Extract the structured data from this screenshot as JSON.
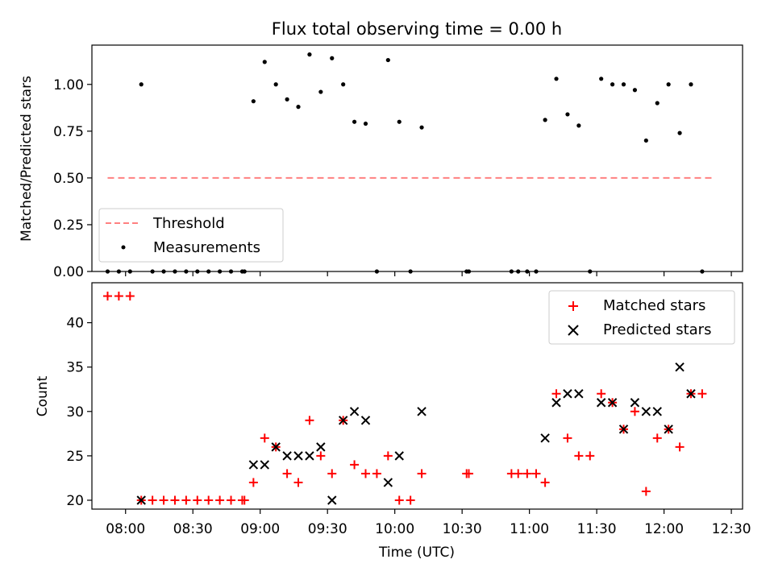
{
  "chart_data": [
    {
      "type": "scatter",
      "title": "Flux total observing time = 0.00 h",
      "xlabel": "",
      "ylabel": "Matched/Predicted stars",
      "x_unit": "UTC time (HH:MM)",
      "xlim": [
        "07:45",
        "12:35"
      ],
      "ylim": [
        0,
        1.21
      ],
      "yticks": [
        0.0,
        0.25,
        0.5,
        0.75,
        1.0
      ],
      "ytick_labels": [
        "0.00",
        "0.25",
        "0.50",
        "0.75",
        "1.00"
      ],
      "grid": false,
      "legend": "lower-left",
      "series": [
        {
          "name": "Threshold",
          "kind": "dashed-line",
          "color": "#ff8080",
          "points": [
            [
              "07:52",
              0.5
            ],
            [
              "12:22",
              0.5
            ]
          ]
        },
        {
          "name": "Measurements",
          "kind": "dots",
          "color": "#000000",
          "points": [
            [
              "07:52",
              0.0
            ],
            [
              "07:57",
              0.0
            ],
            [
              "08:02",
              0.0
            ],
            [
              "08:07",
              1.0
            ],
            [
              "08:12",
              0.0
            ],
            [
              "08:17",
              0.0
            ],
            [
              "08:22",
              0.0
            ],
            [
              "08:27",
              0.0
            ],
            [
              "08:32",
              0.0
            ],
            [
              "08:37",
              0.0
            ],
            [
              "08:42",
              0.0
            ],
            [
              "08:47",
              0.0
            ],
            [
              "08:52",
              0.0
            ],
            [
              "08:53",
              0.0
            ],
            [
              "08:57",
              0.91
            ],
            [
              "09:02",
              1.12
            ],
            [
              "09:07",
              1.0
            ],
            [
              "09:12",
              0.92
            ],
            [
              "09:17",
              0.88
            ],
            [
              "09:22",
              1.16
            ],
            [
              "09:27",
              0.96
            ],
            [
              "09:32",
              1.14
            ],
            [
              "09:37",
              1.0
            ],
            [
              "09:42",
              0.8
            ],
            [
              "09:47",
              0.79
            ],
            [
              "09:52",
              0.0
            ],
            [
              "09:57",
              1.13
            ],
            [
              "10:02",
              0.8
            ],
            [
              "10:07",
              0.0
            ],
            [
              "10:12",
              0.77
            ],
            [
              "10:32",
              0.0
            ],
            [
              "10:33",
              0.0
            ],
            [
              "10:52",
              0.0
            ],
            [
              "10:55",
              0.0
            ],
            [
              "10:59",
              0.0
            ],
            [
              "11:03",
              0.0
            ],
            [
              "11:07",
              0.81
            ],
            [
              "11:12",
              1.03
            ],
            [
              "11:17",
              0.84
            ],
            [
              "11:22",
              0.78
            ],
            [
              "11:27",
              0.0
            ],
            [
              "11:32",
              1.03
            ],
            [
              "11:37",
              1.0
            ],
            [
              "11:42",
              1.0
            ],
            [
              "11:47",
              0.97
            ],
            [
              "11:52",
              0.7
            ],
            [
              "11:57",
              0.9
            ],
            [
              "12:02",
              1.0
            ],
            [
              "12:07",
              0.74
            ],
            [
              "12:12",
              1.0
            ],
            [
              "12:17",
              0.0
            ]
          ]
        }
      ]
    },
    {
      "type": "scatter",
      "title": "",
      "xlabel": "Time (UTC)",
      "ylabel": "Count",
      "x_unit": "UTC time (HH:MM)",
      "xlim": [
        "07:45",
        "12:35"
      ],
      "ylim": [
        19,
        44.5
      ],
      "yticks": [
        20,
        25,
        30,
        35,
        40
      ],
      "ytick_labels": [
        "20",
        "25",
        "30",
        "35",
        "40"
      ],
      "xticks": [
        "08:00",
        "08:30",
        "09:00",
        "09:30",
        "10:00",
        "10:30",
        "11:00",
        "11:30",
        "12:00",
        "12:30"
      ],
      "grid": false,
      "legend": "top-right",
      "series": [
        {
          "name": "Matched stars",
          "marker": "plus",
          "color": "#ff0000",
          "points": [
            [
              "07:52",
              43
            ],
            [
              "07:57",
              43
            ],
            [
              "08:02",
              43
            ],
            [
              "08:07",
              20
            ],
            [
              "08:12",
              20
            ],
            [
              "08:17",
              20
            ],
            [
              "08:22",
              20
            ],
            [
              "08:27",
              20
            ],
            [
              "08:32",
              20
            ],
            [
              "08:37",
              20
            ],
            [
              "08:42",
              20
            ],
            [
              "08:47",
              20
            ],
            [
              "08:52",
              20
            ],
            [
              "08:53",
              20
            ],
            [
              "08:57",
              22
            ],
            [
              "09:02",
              27
            ],
            [
              "09:07",
              26
            ],
            [
              "09:12",
              23
            ],
            [
              "09:17",
              22
            ],
            [
              "09:22",
              29
            ],
            [
              "09:27",
              25
            ],
            [
              "09:32",
              23
            ],
            [
              "09:37",
              29
            ],
            [
              "09:42",
              24
            ],
            [
              "09:47",
              23
            ],
            [
              "09:52",
              23
            ],
            [
              "09:57",
              25
            ],
            [
              "10:02",
              20
            ],
            [
              "10:07",
              20
            ],
            [
              "10:12",
              23
            ],
            [
              "10:32",
              23
            ],
            [
              "10:33",
              23
            ],
            [
              "10:52",
              23
            ],
            [
              "10:55",
              23
            ],
            [
              "10:59",
              23
            ],
            [
              "11:03",
              23
            ],
            [
              "11:07",
              22
            ],
            [
              "11:12",
              32
            ],
            [
              "11:17",
              27
            ],
            [
              "11:22",
              25
            ],
            [
              "11:27",
              25
            ],
            [
              "11:32",
              32
            ],
            [
              "11:37",
              31
            ],
            [
              "11:42",
              28
            ],
            [
              "11:47",
              30
            ],
            [
              "11:52",
              21
            ],
            [
              "11:57",
              27
            ],
            [
              "12:02",
              28
            ],
            [
              "12:07",
              26
            ],
            [
              "12:12",
              32
            ],
            [
              "12:17",
              32
            ]
          ]
        },
        {
          "name": "Predicted stars",
          "marker": "x",
          "color": "#000000",
          "points": [
            [
              "08:07",
              20
            ],
            [
              "08:57",
              24
            ],
            [
              "09:02",
              24
            ],
            [
              "09:07",
              26
            ],
            [
              "09:12",
              25
            ],
            [
              "09:17",
              25
            ],
            [
              "09:22",
              25
            ],
            [
              "09:27",
              26
            ],
            [
              "09:32",
              20
            ],
            [
              "09:37",
              29
            ],
            [
              "09:42",
              30
            ],
            [
              "09:47",
              29
            ],
            [
              "09:57",
              22
            ],
            [
              "10:02",
              25
            ],
            [
              "10:12",
              30
            ],
            [
              "11:07",
              27
            ],
            [
              "11:12",
              31
            ],
            [
              "11:17",
              32
            ],
            [
              "11:22",
              32
            ],
            [
              "11:32",
              31
            ],
            [
              "11:37",
              31
            ],
            [
              "11:42",
              28
            ],
            [
              "11:47",
              31
            ],
            [
              "11:52",
              30
            ],
            [
              "11:57",
              30
            ],
            [
              "12:02",
              28
            ],
            [
              "12:07",
              35
            ],
            [
              "12:12",
              32
            ]
          ]
        }
      ]
    }
  ]
}
